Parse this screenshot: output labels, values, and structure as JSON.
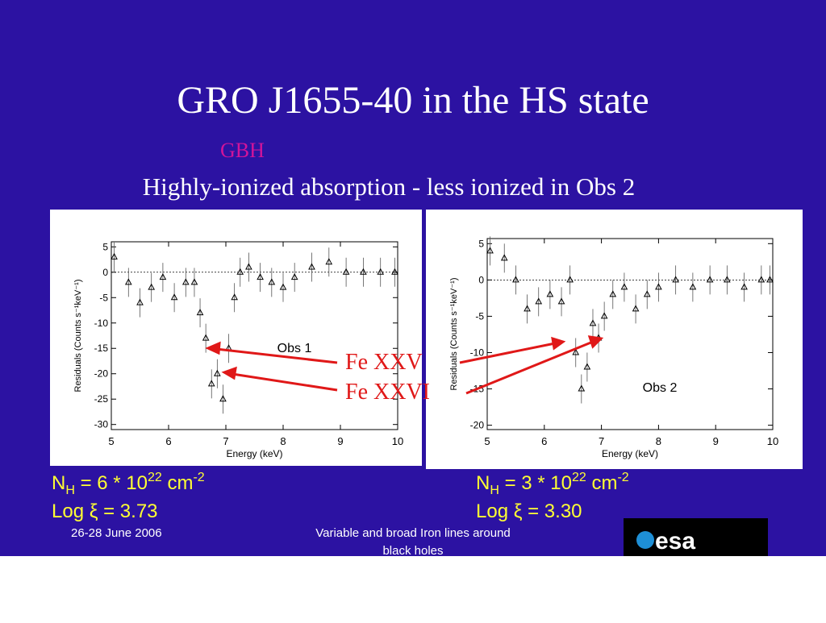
{
  "slide": {
    "title": "GRO J1655-40 in the HS state",
    "tag": "GBH",
    "subtitle": "Highly-ionized absorption - less ionized in Obs 2",
    "annotations": [
      "Fe XXV",
      "Fe XXVI"
    ],
    "parameters": [
      {
        "symbol": "N",
        "subscript": "H",
        "text": " = 6 * 10",
        "exponent": "22",
        "unit": " cm",
        "unit_exponent": "-2",
        "log_xi": "Log ξ = 3.73"
      },
      {
        "symbol": "N",
        "subscript": "H",
        "text": " = 3 * 10",
        "exponent": "22",
        "unit": " cm",
        "unit_exponent": "-2",
        "log_xi": "Log ξ = 3.30"
      }
    ],
    "footer": {
      "date": "26-28 June 2006",
      "talk": [
        "Variable and broad Iron lines around",
        "black holes"
      ],
      "logo": "esa"
    }
  },
  "chart_data": [
    {
      "type": "scatter",
      "annotation": "Obs 1",
      "xlabel": "Energy (keV)",
      "ylabel": "Residuals (Counts s⁻¹keV⁻¹)",
      "color": "#000000",
      "hline": 0,
      "x": [
        5.05,
        5.3,
        5.5,
        5.7,
        5.9,
        6.1,
        6.3,
        6.45,
        6.55,
        6.65,
        6.75,
        6.85,
        6.95,
        7.05,
        7.15,
        7.25,
        7.4,
        7.6,
        7.8,
        8.0,
        8.2,
        8.5,
        8.8,
        9.1,
        9.4,
        9.7,
        9.95
      ],
      "values": [
        3,
        -2,
        -6,
        -3,
        -1,
        -5,
        -2,
        -2,
        -8,
        -13,
        -22,
        -20,
        -25,
        -15,
        -5,
        0,
        1,
        -1,
        -2,
        -3,
        -1,
        1,
        2,
        0,
        0,
        0,
        0
      ],
      "xlim": [
        5,
        10
      ],
      "ylim": [
        -31,
        6
      ],
      "xticks": [
        5,
        6,
        7,
        8,
        9,
        10
      ],
      "yticks": [
        5,
        0,
        -5,
        -10,
        -15,
        -20,
        -25,
        -30
      ]
    },
    {
      "type": "scatter",
      "annotation": "Obs 2",
      "xlabel": "Energy (keV)",
      "ylabel": "Residuals (Counts s⁻¹keV⁻¹)",
      "color": "#000000",
      "hline": 0,
      "x": [
        5.05,
        5.3,
        5.5,
        5.7,
        5.9,
        6.1,
        6.3,
        6.45,
        6.55,
        6.65,
        6.75,
        6.85,
        6.95,
        7.05,
        7.2,
        7.4,
        7.6,
        7.8,
        8.0,
        8.3,
        8.6,
        8.9,
        9.2,
        9.5,
        9.8,
        9.95
      ],
      "values": [
        4,
        3,
        0,
        -4,
        -3,
        -2,
        -3,
        0,
        -10,
        -15,
        -12,
        -6,
        -8,
        -5,
        -2,
        -1,
        -4,
        -2,
        -1,
        0,
        -1,
        0,
        0,
        -1,
        0,
        0
      ],
      "xlim": [
        5,
        10
      ],
      "ylim": [
        -20.6,
        5.7
      ],
      "xticks": [
        5,
        6,
        7,
        8,
        9,
        10
      ],
      "yticks": [
        5,
        0,
        -5,
        -10,
        -15,
        -20
      ]
    }
  ]
}
